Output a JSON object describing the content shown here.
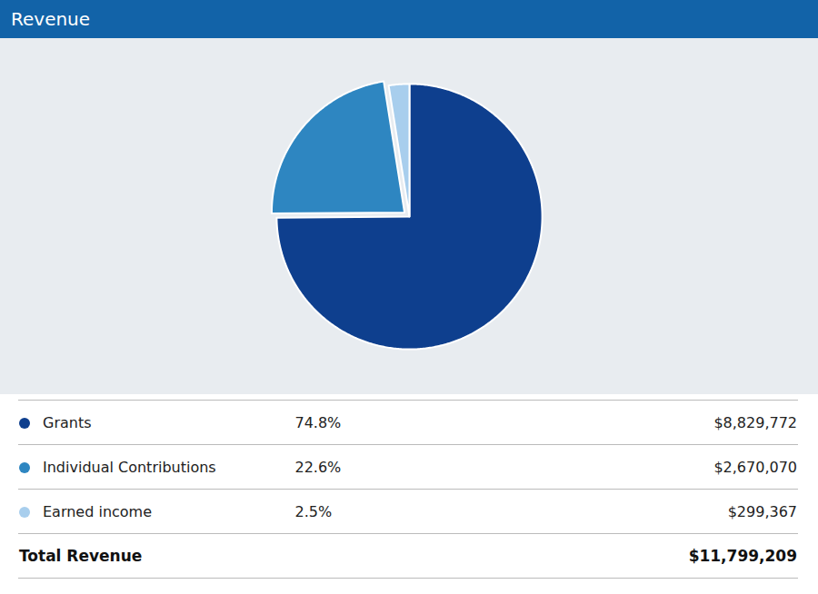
{
  "chart_data": {
    "type": "pie",
    "title": "Revenue",
    "categories": [
      "Grants",
      "Individual Contributions",
      "Earned income"
    ],
    "values": [
      74.8,
      22.6,
      2.5
    ],
    "value_labels": [
      "74.8%",
      "22.6%",
      "2.5%"
    ],
    "colors": [
      "#0E3F8E",
      "#2E86C1",
      "#A8CEED"
    ],
    "amounts": [
      {
        "value": 8829772,
        "label": "$8,829,772"
      },
      {
        "value": 2670070,
        "label": "$2,670,070"
      },
      {
        "value": 299367,
        "label": "$299,367"
      }
    ],
    "total": {
      "name": "Total Revenue",
      "value": 11799209,
      "label": "$11,799,209"
    }
  }
}
